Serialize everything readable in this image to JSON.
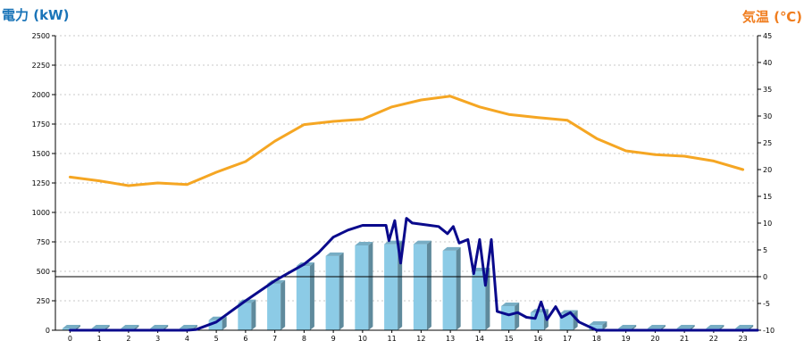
{
  "chart_data": {
    "type": "bar+line",
    "left_axis": {
      "label": "電力 (kW)",
      "color": "#1a74b8",
      "min": 0,
      "max": 2500,
      "ticks": [
        0,
        250,
        500,
        750,
        1000,
        1250,
        1500,
        1750,
        2000,
        2250,
        2500
      ]
    },
    "right_axis": {
      "label": "気温 (℃)",
      "color": "#f07d1e",
      "min": -10,
      "max": 45,
      "ticks": [
        -10,
        -5,
        0,
        5,
        10,
        15,
        20,
        25,
        30,
        35,
        40,
        45
      ]
    },
    "categories": [
      "0",
      "1",
      "2",
      "3",
      "4",
      "5",
      "6",
      "7",
      "8",
      "9",
      "10",
      "11",
      "12",
      "13",
      "14",
      "15",
      "16",
      "17",
      "18",
      "19",
      "20",
      "21",
      "22",
      "23"
    ],
    "grid": true,
    "series": [
      {
        "type": "bar",
        "axis": "left",
        "color": "#8ccbe6",
        "values": [
          15,
          15,
          15,
          15,
          15,
          85,
          230,
          395,
          545,
          630,
          720,
          730,
          730,
          675,
          500,
          205,
          150,
          140,
          45,
          15,
          15,
          15,
          15,
          15
        ]
      },
      {
        "type": "line",
        "axis": "left",
        "color": "#0a0a8c",
        "points": [
          [
            0,
            0
          ],
          [
            4,
            0
          ],
          [
            4.3,
            5
          ],
          [
            5,
            70
          ],
          [
            6,
            250
          ],
          [
            7,
            420
          ],
          [
            8,
            560
          ],
          [
            8.5,
            660
          ],
          [
            9,
            790
          ],
          [
            9.5,
            850
          ],
          [
            10,
            890
          ],
          [
            10.8,
            890
          ],
          [
            10.9,
            760
          ],
          [
            11.1,
            930
          ],
          [
            11.3,
            570
          ],
          [
            11.5,
            950
          ],
          [
            11.7,
            910
          ],
          [
            12.3,
            890
          ],
          [
            12.6,
            880
          ],
          [
            12.9,
            820
          ],
          [
            13.1,
            880
          ],
          [
            13.3,
            740
          ],
          [
            13.6,
            770
          ],
          [
            13.8,
            480
          ],
          [
            14.0,
            770
          ],
          [
            14.2,
            380
          ],
          [
            14.4,
            770
          ],
          [
            14.6,
            160
          ],
          [
            15.0,
            130
          ],
          [
            15.3,
            150
          ],
          [
            15.6,
            110
          ],
          [
            15.9,
            100
          ],
          [
            16.1,
            240
          ],
          [
            16.3,
            90
          ],
          [
            16.6,
            200
          ],
          [
            16.8,
            110
          ],
          [
            17.1,
            150
          ],
          [
            17.4,
            70
          ],
          [
            18,
            0
          ],
          [
            23.5,
            0
          ]
        ]
      },
      {
        "type": "line",
        "axis": "right",
        "color": "#f5a623",
        "values": [
          18.6,
          17.9,
          17.0,
          17.5,
          17.2,
          19.5,
          21.5,
          25.3,
          28.4,
          29.0,
          29.4,
          31.7,
          33.0,
          33.7,
          31.7,
          30.3,
          29.7,
          29.2,
          25.8,
          23.5,
          22.8,
          22.5,
          21.6,
          20.0
        ]
      }
    ]
  }
}
